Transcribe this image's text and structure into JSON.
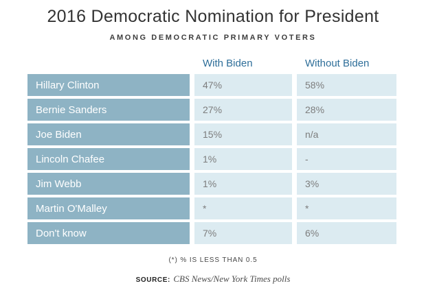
{
  "header": {
    "title": "2016 Democratic Nomination for President",
    "subtitle": "AMONG DEMOCRATIC PRIMARY VOTERS"
  },
  "chart_data": {
    "type": "table",
    "title": "2016 Democratic Nomination for President",
    "subtitle": "AMONG DEMOCRATIC PRIMARY VOTERS",
    "columns": [
      "With Biden",
      "Without Biden"
    ],
    "rows": [
      [
        "Hillary Clinton",
        "47%",
        "58%"
      ],
      [
        "Bernie Sanders",
        "27%",
        "28%"
      ],
      [
        "Joe Biden",
        "15%",
        "n/a"
      ],
      [
        "Lincoln Chafee",
        "1%",
        "-"
      ],
      [
        "Jim Webb",
        "1%",
        "3%"
      ],
      [
        "Martin O'Malley",
        "*",
        "*"
      ],
      [
        "Don't know",
        "7%",
        "6%"
      ]
    ],
    "notes": "(*) % IS LESS THAN 0.5"
  },
  "footer": {
    "footnote": "(*) % IS LESS THAN 0.5",
    "source_label": "SOURCE:",
    "source_text": "CBS News/New York Times polls"
  },
  "colors": {
    "candidate_cell_bg": "#8eb3c4",
    "value_cell_bg": "#dcebf1",
    "column_header_text": "#2e6e99",
    "candidate_text": "#ffffff",
    "value_text": "#7d7d7d"
  }
}
